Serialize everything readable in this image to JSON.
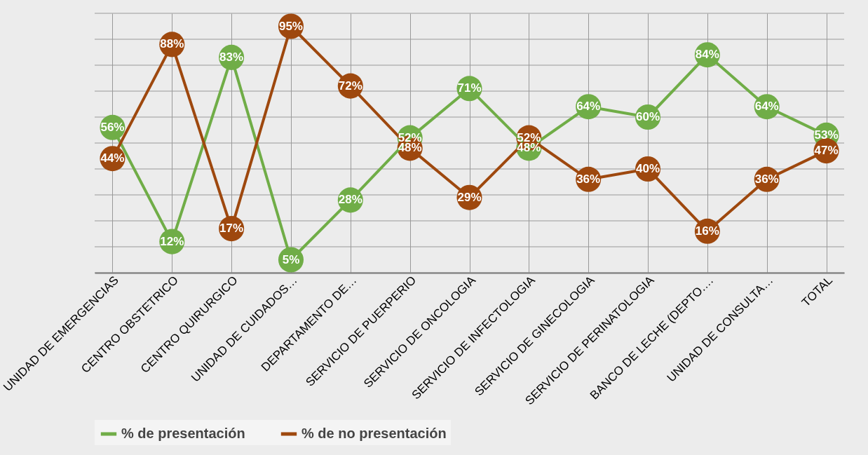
{
  "chart_data": {
    "type": "line",
    "categories": [
      "UNIDAD DE EMERGENCIAS",
      "CENTRO OBSTETRICO",
      "CENTRO QUIRURGICO",
      "UNIDAD DE CUIDADOS…",
      "DEPARTAMENTO DE…",
      "SERVICIO DE PUERPERIO",
      "SERVICIO DE ONCOLOGIA",
      "SERVICIO DE INFECTOLOGIA",
      "SERVICIO DE GINECOLOGIA",
      "SERVICIO DE PERINATOLOGIA",
      "BANCO DE LECHE (DEPTO.…",
      "UNIDAD DE CONSULTA…",
      "TOTAL"
    ],
    "series": [
      {
        "name": "% de presentación",
        "color": "#70ad47",
        "values": [
          56,
          12,
          83,
          5,
          28,
          52,
          71,
          48,
          64,
          60,
          84,
          64,
          53
        ],
        "value_labels": [
          "56%",
          "12%",
          "83%",
          "5%",
          "28%",
          "52%",
          "71%",
          "48%",
          "64%",
          "60%",
          "84%",
          "64%",
          "53%"
        ]
      },
      {
        "name": "% de no presentación",
        "color": "#9e480e",
        "values": [
          44,
          88,
          17,
          95,
          72,
          48,
          29,
          52,
          36,
          40,
          16,
          36,
          47
        ],
        "value_labels": [
          "44%",
          "88%",
          "17%",
          "95%",
          "72%",
          "48%",
          "29%",
          "52%",
          "36%",
          "40%",
          "16%",
          "36%",
          "47%"
        ]
      }
    ],
    "ylim": [
      0,
      100
    ],
    "yticks": [
      {
        "value": 0,
        "label": null
      },
      {
        "value": 10,
        "label": null
      },
      {
        "value": 20,
        "label": null
      },
      {
        "value": 30,
        "label": null
      },
      {
        "value": 40,
        "label": null
      },
      {
        "value": 50,
        "label": null
      },
      {
        "value": 60,
        "label": null
      },
      {
        "value": 70,
        "label": null
      },
      {
        "value": 80,
        "label": null
      },
      {
        "value": 90,
        "label": null
      },
      {
        "value": 100,
        "label": null
      }
    ],
    "grid": true,
    "legend": "bottom",
    "marker": "circle",
    "line_style": "solid",
    "tick_labels": "x"
  }
}
